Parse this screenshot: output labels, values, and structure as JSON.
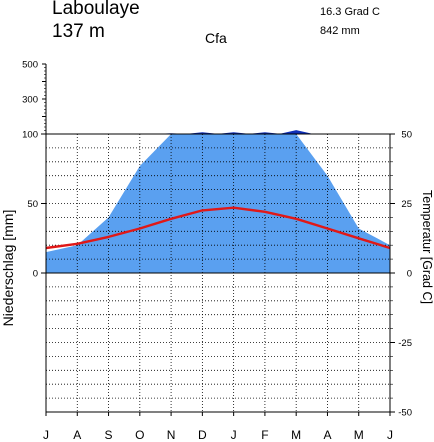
{
  "header": {
    "station": "Laboulaye",
    "elevation": "137 m",
    "climate_class": "Cfa",
    "annual_temperature": "16.3 Grad C",
    "annual_precipitation": "842 mm"
  },
  "colors": {
    "precip_fill": "#5aa0f0",
    "precip_extreme": "#1030b8",
    "temperature_line": "#e01818"
  },
  "chart_data": {
    "type": "area",
    "months": [
      "J",
      "A",
      "S",
      "O",
      "N",
      "D",
      "J",
      "F",
      "M",
      "A",
      "M",
      "J"
    ],
    "series": [
      {
        "name": "",
        "kind": "precipitation_mm",
        "values": [
          15,
          20,
          40,
          77,
          104,
          110,
          110,
          110,
          122,
          70,
          32,
          20
        ]
      },
      {
        "name": "",
        "kind": "temperature_C",
        "values": [
          9,
          10.5,
          13,
          16,
          19.5,
          22.5,
          23.5,
          22,
          19.5,
          16,
          12.5,
          9
        ]
      }
    ],
    "y_left": {
      "label": "Niederschlag [mm]",
      "lower_ticks": [
        "0",
        "50",
        "100"
      ],
      "upper_ticks": [
        "300",
        "500"
      ],
      "compressed_above": 100
    },
    "y_right": {
      "label": "Temperatur [Grad C]",
      "ticks": [
        "-50",
        "-25",
        "0",
        "25",
        "50"
      ],
      "range": [
        -50,
        50
      ]
    },
    "grid": true
  }
}
